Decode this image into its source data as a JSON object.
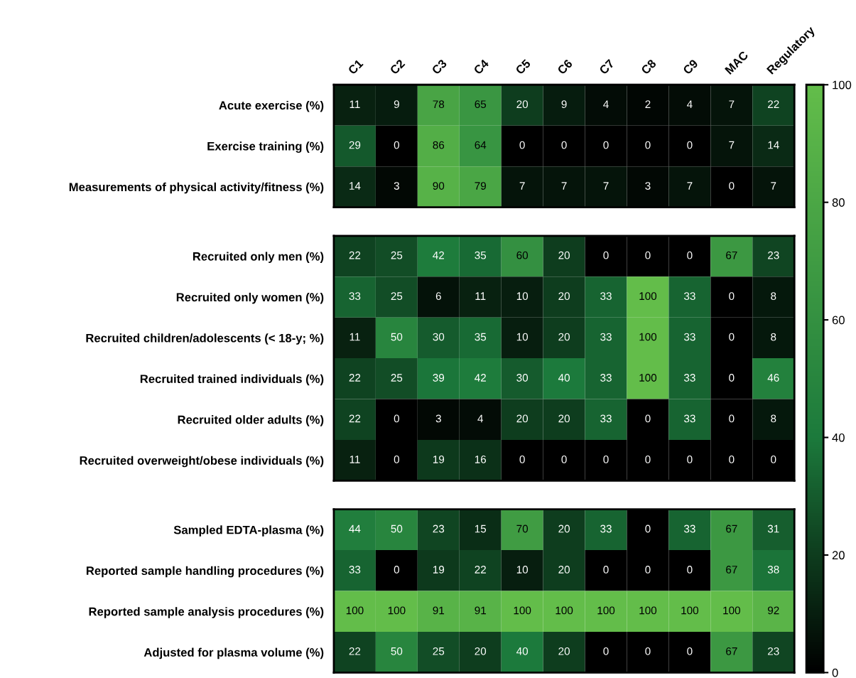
{
  "chart_data": [
    {
      "type": "heatmap",
      "categories": [
        "C1",
        "C2",
        "C3",
        "C4",
        "C5",
        "C6",
        "C7",
        "C8",
        "C9",
        "MAC",
        "Regulatory"
      ],
      "y_categories": [
        "Acute exercise (%)",
        "Exercise training (%)",
        "Measurements of physical activity/fitness (%)"
      ],
      "cells": [
        [
          11,
          9,
          78,
          65,
          20,
          9,
          4,
          2,
          4,
          7,
          22
        ],
        [
          29,
          0,
          86,
          64,
          0,
          0,
          0,
          0,
          0,
          7,
          14
        ],
        [
          14,
          3,
          90,
          79,
          7,
          7,
          7,
          3,
          7,
          0,
          7
        ]
      ],
      "data_labels": true,
      "clim": [
        0,
        100
      ],
      "cticks": [
        0,
        20,
        40,
        60,
        80,
        100
      ]
    },
    {
      "type": "heatmap",
      "categories": [
        null,
        null,
        null,
        null,
        null,
        null,
        null,
        null,
        null,
        null,
        null
      ],
      "y_categories": [
        "Recruited only men (%)",
        "Recruited only women (%)",
        "Recruited children/adolescents (< 18-y; %)",
        "Recruited trained individuals (%)",
        "Recruited older adults (%)",
        "Recruited overweight/obese individuals (%)"
      ],
      "cells": [
        [
          22,
          25,
          42,
          35,
          60,
          20,
          0,
          0,
          0,
          67,
          23
        ],
        [
          33,
          25,
          6,
          11,
          10,
          20,
          33,
          100,
          33,
          0,
          8
        ],
        [
          11,
          50,
          30,
          35,
          10,
          20,
          33,
          100,
          33,
          0,
          8
        ],
        [
          22,
          25,
          39,
          42,
          30,
          40,
          33,
          100,
          33,
          0,
          46
        ],
        [
          22,
          0,
          3,
          4,
          20,
          20,
          33,
          0,
          33,
          0,
          8
        ],
        [
          11,
          0,
          19,
          16,
          0,
          0,
          0,
          0,
          0,
          0,
          0
        ]
      ],
      "data_labels": true
    },
    {
      "type": "heatmap",
      "categories": [
        null,
        null,
        null,
        null,
        null,
        null,
        null,
        null,
        null,
        null,
        null
      ],
      "y_categories": [
        "Sampled EDTA-plasma (%)",
        "Reported sample handling procedures (%)",
        "Reported sample analysis procedures (%)",
        "Adjusted for plasma volume (%)"
      ],
      "cells": [
        [
          44,
          50,
          23,
          15,
          70,
          20,
          33,
          0,
          33,
          67,
          31
        ],
        [
          33,
          0,
          19,
          22,
          10,
          20,
          0,
          0,
          0,
          67,
          38
        ],
        [
          100,
          100,
          91,
          91,
          100,
          100,
          100,
          100,
          100,
          100,
          92
        ],
        [
          22,
          50,
          25,
          20,
          40,
          20,
          0,
          0,
          0,
          67,
          23
        ]
      ],
      "data_labels": true
    }
  ]
}
